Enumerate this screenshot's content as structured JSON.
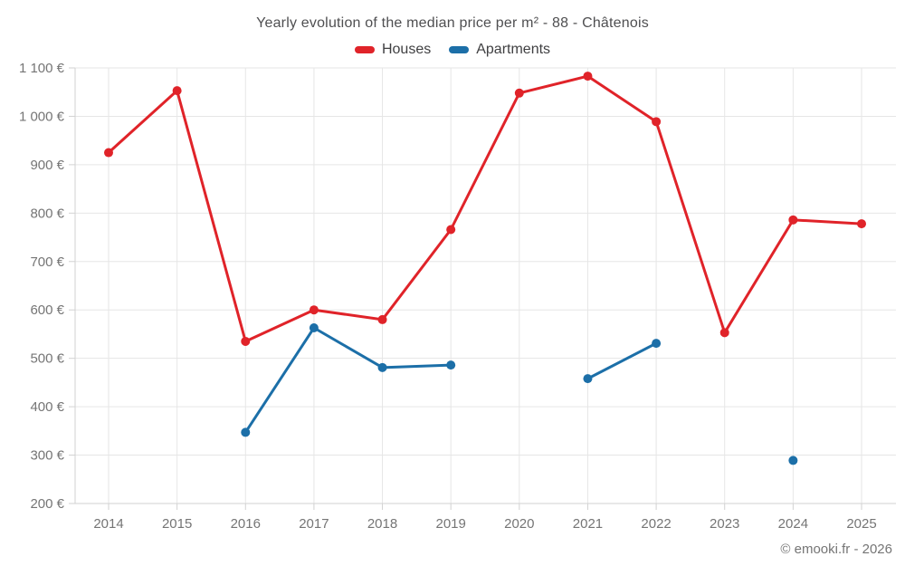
{
  "chart_data": {
    "type": "line",
    "title": "Yearly evolution of the median price per m² - 88 - Châtenois",
    "categories": [
      "2014",
      "2015",
      "2016",
      "2017",
      "2018",
      "2019",
      "2020",
      "2021",
      "2022",
      "2023",
      "2024",
      "2025"
    ],
    "series": [
      {
        "name": "Houses",
        "color": "#e02329",
        "values": [
          925,
          1053,
          535,
          600,
          580,
          766,
          1048,
          1083,
          989,
          553,
          786,
          778
        ]
      },
      {
        "name": "Apartments",
        "color": "#1c6fa8",
        "values": [
          null,
          null,
          347,
          563,
          481,
          486,
          null,
          458,
          531,
          null,
          289,
          null
        ]
      }
    ],
    "xlabel": "",
    "ylabel": "",
    "ylim": [
      200,
      1100
    ],
    "y_ticks": [
      200,
      300,
      400,
      500,
      600,
      700,
      800,
      900,
      1000,
      1100
    ],
    "y_tick_labels": [
      "200 €",
      "300 €",
      "400 €",
      "500 €",
      "600 €",
      "700 €",
      "800 €",
      "900 €",
      "1 000 €",
      "1 100 €"
    ],
    "grid": true,
    "legend_position": "top"
  },
  "footer": {
    "text": "© emooki.fr - 2026"
  },
  "theme": {
    "grid_color": "#e6e6e6",
    "axis_color": "#d2d2d2",
    "tick_label_color": "#757575",
    "title_color": "#4f4f51",
    "background": "#ffffff"
  }
}
